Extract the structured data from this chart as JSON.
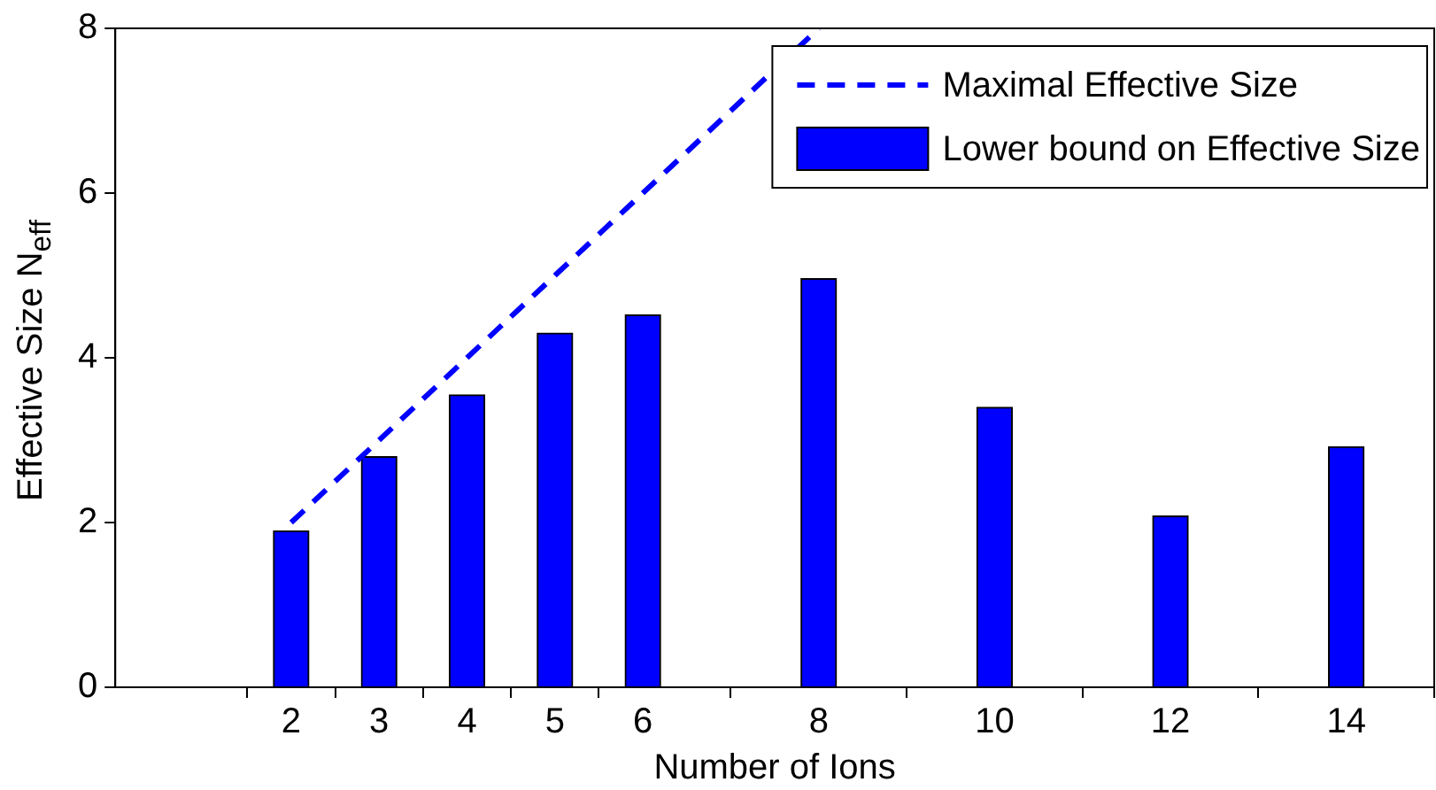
{
  "chart_data": {
    "type": "bar",
    "xlabel": "Number of Ions",
    "ylabel": "Effective Size N$_{eff}$",
    "x": [
      2,
      3,
      4,
      5,
      6,
      8,
      10,
      12,
      14
    ],
    "series": [
      {
        "name": "Maximal Effective Size",
        "type": "line",
        "color": "#0000ff",
        "line_style": "dashed",
        "x": [
          2,
          3,
          4,
          5,
          6,
          8
        ],
        "values": [
          2,
          3,
          4,
          5,
          6,
          8
        ]
      },
      {
        "name": "Lower bound on Effective Size",
        "color": "#0000ff",
        "values": [
          1.9,
          2.8,
          3.55,
          4.3,
          4.52,
          4.96,
          3.4,
          2.08,
          2.92
        ]
      }
    ],
    "xlim": [
      0,
      15
    ],
    "xticks": [
      2,
      3,
      4,
      5,
      6,
      8,
      10,
      12,
      14
    ],
    "ylim": [
      0,
      8
    ],
    "yticks": [
      0,
      2,
      4,
      6,
      8
    ],
    "grid": false,
    "legend": "top right",
    "marker": "none"
  }
}
